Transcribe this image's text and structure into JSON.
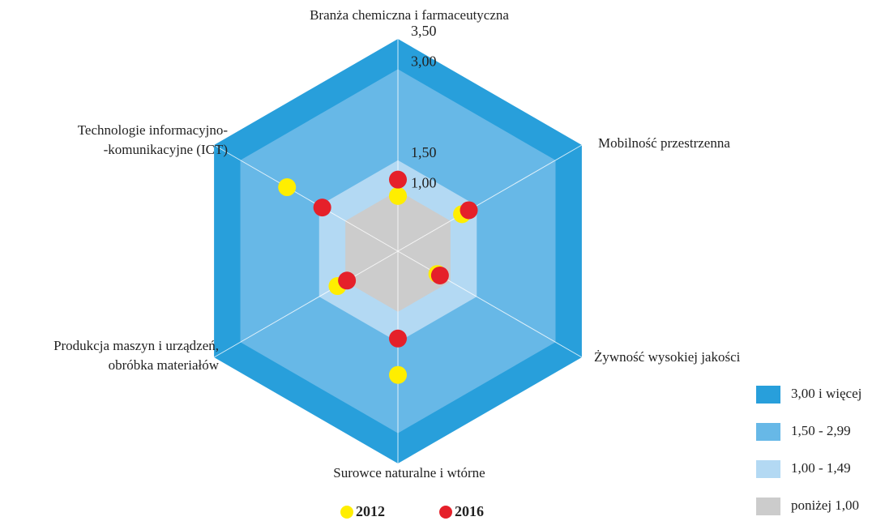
{
  "chart_data": {
    "type": "radar",
    "categories": [
      [
        "Branża chemiczna i farmaceutyczna"
      ],
      [
        "Mobilność przestrzenna"
      ],
      [
        "Żywność wysokiej jakości"
      ],
      [
        "Surowce naturalne i wtórne"
      ],
      [
        "Produkcja maszyn i urządzeń,",
        "obróbka materiałów"
      ],
      [
        "Technologie informacyjno-",
        "-komunikacyjne (ICT)"
      ]
    ],
    "rlim": [
      0,
      3.5
    ],
    "rticks": [
      {
        "value": 1,
        "label": "1,00"
      },
      {
        "value": 1.5,
        "label": "1,50"
      },
      {
        "value": 3,
        "label": "3,00"
      },
      {
        "value": 3.5,
        "label": "3,50"
      }
    ],
    "bands": [
      {
        "label": "3,00 i więcej",
        "color": "#289fdb",
        "from": 3,
        "to": 3.5
      },
      {
        "label": "1,50 - 2,99",
        "color": "#67b8e7",
        "from": 1.5,
        "to": 3
      },
      {
        "label": "1,00 - 1,49",
        "color": "#b3d9f3",
        "from": 1,
        "to": 1.5
      },
      {
        "label": "poniżej 1,00",
        "color": "#cccccc",
        "from": 0,
        "to": 1
      }
    ],
    "series": [
      {
        "name": "2012",
        "color": "#ffee00",
        "values": [
          0.91,
          1.22,
          0.75,
          2.04,
          1.15,
          2.11
        ]
      },
      {
        "name": "2016",
        "color": "#e5202a",
        "values": [
          1.18,
          1.35,
          0.8,
          1.44,
          0.97,
          1.44
        ]
      }
    ]
  }
}
